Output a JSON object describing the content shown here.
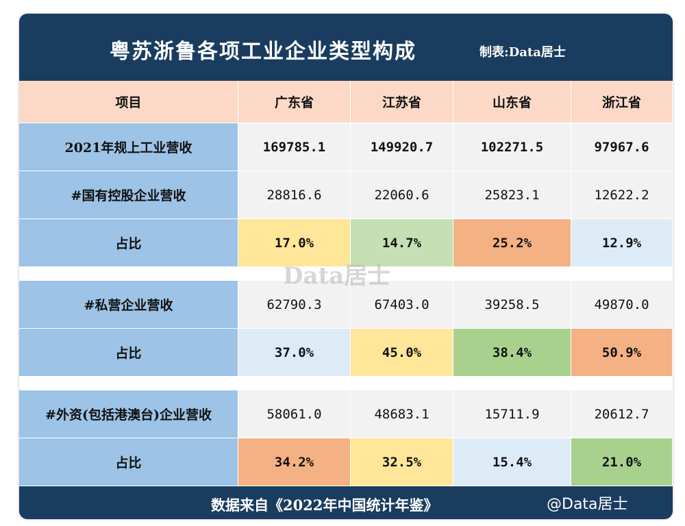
{
  "header": {
    "title": "粤苏浙鲁各项工业企业类型构成",
    "credit": "制表:Data居士"
  },
  "table": {
    "headers": [
      "项目",
      "广东省",
      "江苏省",
      "山东省",
      "浙江省"
    ],
    "rows": [
      [
        "2021年规上工业营收",
        "169785.1",
        "149920.7",
        "102271.5",
        "97967.6"
      ],
      [
        "#国有控股企业营收",
        "28816.6",
        "22060.6",
        "25823.1",
        "12622.2"
      ],
      [
        "占比",
        "17.0%",
        "14.7%",
        "25.2%",
        "12.9%"
      ],
      [
        "#私营企业营收",
        "62790.3",
        "67403.0",
        "39258.5",
        "49870.0"
      ],
      [
        "占比",
        "37.0%",
        "45.0%",
        "38.4%",
        "50.9%"
      ],
      [
        "#外资(包括港澳台)企业营收",
        "58061.0",
        "48683.1",
        "15711.9",
        "20612.7"
      ],
      [
        "占比",
        "34.2%",
        "32.5%",
        "15.4%",
        "21.0%"
      ]
    ]
  },
  "watermark": "Data居士",
  "footer": {
    "source": "数据来自《2022年中国统计年鉴》",
    "handle": "@Data居士"
  }
}
